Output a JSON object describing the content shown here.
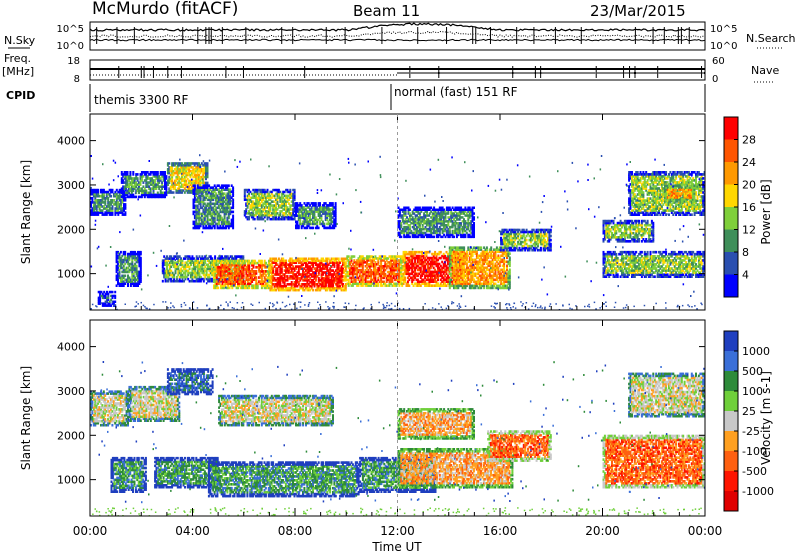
{
  "header": {
    "station": "McMurdo (fitACF)",
    "beam": "Beam 11",
    "date": "23/Mar/2015"
  },
  "summary_panel": {
    "left_labels": {
      "nsky": "N.Sky",
      "freq": "Freq.",
      "mhz": "[MHz]",
      "cpid": "CPID"
    },
    "right_labels": {
      "nsearch": "N.Search",
      "nave": "Nave"
    },
    "noise_ticks_left": [
      "10^5",
      "10^0"
    ],
    "noise_ticks_right": [
      "10^5",
      "10^0"
    ],
    "freq_ticks": [
      "18",
      "8"
    ],
    "nave_ticks": [
      "60",
      "0"
    ],
    "cpid_segments": [
      {
        "label": "themis 3300 RF",
        "start_hour": 0,
        "end_hour": 12
      },
      {
        "label": "normal (fast) 151 RF",
        "start_hour": 12,
        "end_hour": 24
      }
    ]
  },
  "chart_data": [
    {
      "type": "heatmap",
      "panel": "power",
      "ylabel": "Slant Range [km]",
      "xlabel": "Time UT",
      "xlim": [
        0,
        24
      ],
      "ylim": [
        180,
        4600
      ],
      "yticks": [
        "1000",
        "2000",
        "3000",
        "4000"
      ],
      "xticks": [
        "00:00",
        "04:00",
        "08:00",
        "12:00",
        "16:00",
        "20:00",
        "00:00"
      ],
      "colorbar": {
        "label": "Power [dB]",
        "ticks": [
          "4",
          "8",
          "12",
          "16",
          "20",
          "24",
          "28"
        ],
        "colors": [
          "#0000ff",
          "#2a4fb0",
          "#3f8f5a",
          "#7fcf3a",
          "#ffd700",
          "#ff9900",
          "#ff5500",
          "#ff0000"
        ]
      },
      "echo_regions": [
        {
          "t0": 0.0,
          "t1": 1.4,
          "r0": 2300,
          "r1": 2900,
          "level": 2
        },
        {
          "t0": 1.0,
          "t1": 2.0,
          "r0": 700,
          "r1": 1500,
          "level": 2
        },
        {
          "t0": 0.3,
          "t1": 1.0,
          "r0": 250,
          "r1": 600,
          "level": 1
        },
        {
          "t0": 1.2,
          "t1": 3.0,
          "r0": 2700,
          "r1": 3300,
          "level": 2
        },
        {
          "t0": 3.0,
          "t1": 4.6,
          "r0": 2800,
          "r1": 3500,
          "level": 4
        },
        {
          "t0": 4.0,
          "t1": 5.6,
          "r0": 2000,
          "r1": 3000,
          "level": 2
        },
        {
          "t0": 2.8,
          "t1": 6.0,
          "r0": 800,
          "r1": 1400,
          "level": 3
        },
        {
          "t0": 4.8,
          "t1": 7.0,
          "r0": 650,
          "r1": 1300,
          "level": 6
        },
        {
          "t0": 7.0,
          "t1": 10.0,
          "r0": 600,
          "r1": 1350,
          "level": 7
        },
        {
          "t0": 6.0,
          "t1": 8.0,
          "r0": 2200,
          "r1": 2900,
          "level": 3
        },
        {
          "t0": 8.0,
          "t1": 9.6,
          "r0": 2000,
          "r1": 2600,
          "level": 2
        },
        {
          "t0": 10.0,
          "t1": 12.2,
          "r0": 700,
          "r1": 1400,
          "level": 6
        },
        {
          "t0": 12.2,
          "t1": 14.6,
          "r0": 700,
          "r1": 1500,
          "level": 7
        },
        {
          "t0": 14.0,
          "t1": 16.4,
          "r0": 650,
          "r1": 1600,
          "level": 5
        },
        {
          "t0": 16.0,
          "t1": 18.0,
          "r0": 1500,
          "r1": 2000,
          "level": 3
        },
        {
          "t0": 12.0,
          "t1": 15.0,
          "r0": 1800,
          "r1": 2500,
          "level": 2
        },
        {
          "t0": 20.0,
          "t1": 22.0,
          "r0": 1700,
          "r1": 2200,
          "level": 3
        },
        {
          "t0": 20.0,
          "t1": 24.0,
          "r0": 900,
          "r1": 1500,
          "level": 3
        },
        {
          "t0": 21.0,
          "t1": 24.0,
          "r0": 2300,
          "r1": 3300,
          "level": 3
        },
        {
          "t0": 22.4,
          "t1": 23.6,
          "r0": 2600,
          "r1": 3000,
          "level": 5
        }
      ]
    },
    {
      "type": "heatmap",
      "panel": "velocity",
      "ylabel": "Slant Range [km]",
      "xlabel": "Time UT",
      "xlim": [
        0,
        24
      ],
      "ylim": [
        180,
        4600
      ],
      "yticks": [
        "1000",
        "2000",
        "3000",
        "4000"
      ],
      "xticks": [
        "00:00",
        "04:00",
        "08:00",
        "12:00",
        "16:00",
        "20:00",
        "00:00"
      ],
      "colorbar": {
        "label": "Velocity [m s-1]",
        "ticks": [
          "1000",
          "500",
          "100",
          "25",
          "-25",
          "-100",
          "-500",
          "-1000"
        ],
        "colors": [
          "#1f3fbf",
          "#3a6fd8",
          "#2e8b3a",
          "#6fcf3a",
          "#c8c8c8",
          "#ffa020",
          "#ff6010",
          "#ff1500",
          "#e00000"
        ]
      },
      "echo_regions": [
        {
          "t0": 0.0,
          "t1": 1.5,
          "r0": 2200,
          "r1": 3000,
          "level": 4
        },
        {
          "t0": 0.8,
          "t1": 2.2,
          "r0": 700,
          "r1": 1500,
          "level": 2
        },
        {
          "t0": 1.5,
          "t1": 3.5,
          "r0": 2300,
          "r1": 3100,
          "level": 4
        },
        {
          "t0": 3.0,
          "t1": 4.8,
          "r0": 2900,
          "r1": 3500,
          "level": 1
        },
        {
          "t0": 2.5,
          "t1": 5.0,
          "r0": 800,
          "r1": 1500,
          "level": 2
        },
        {
          "t0": 4.6,
          "t1": 10.5,
          "r0": 600,
          "r1": 1400,
          "level": 2
        },
        {
          "t0": 5.0,
          "t1": 9.5,
          "r0": 2200,
          "r1": 2900,
          "level": 4
        },
        {
          "t0": 10.5,
          "t1": 13.5,
          "r0": 700,
          "r1": 1500,
          "level": 2
        },
        {
          "t0": 12.0,
          "t1": 16.5,
          "r0": 800,
          "r1": 1700,
          "level": 5
        },
        {
          "t0": 15.5,
          "t1": 18.0,
          "r0": 1400,
          "r1": 2100,
          "level": 6
        },
        {
          "t0": 12.0,
          "t1": 15.0,
          "r0": 1900,
          "r1": 2600,
          "level": 5
        },
        {
          "t0": 20.0,
          "t1": 24.0,
          "r0": 800,
          "r1": 2000,
          "level": 6
        },
        {
          "t0": 21.0,
          "t1": 24.0,
          "r0": 2400,
          "r1": 3400,
          "level": 4
        }
      ]
    }
  ]
}
